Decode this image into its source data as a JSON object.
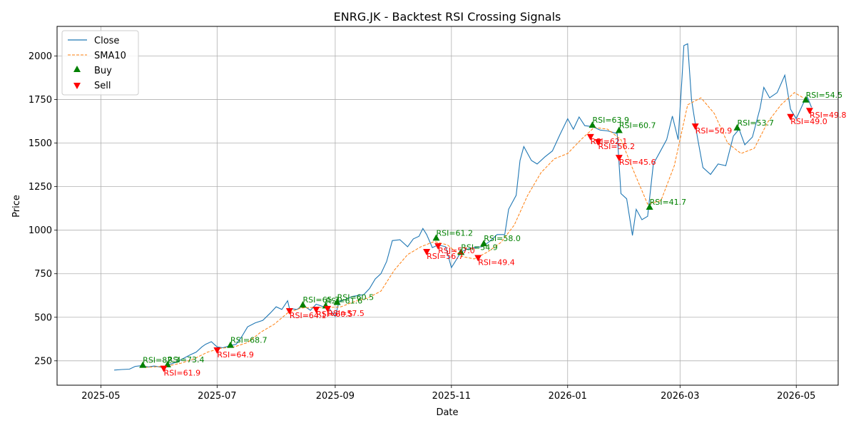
{
  "chart_data": {
    "type": "line",
    "title": "ENRG.JK - Backtest RSI Crossing Signals",
    "xlabel": "Date",
    "ylabel": "Price",
    "xlim": [
      "2025-04-08",
      "2026-05-23"
    ],
    "ylim": [
      110,
      2170
    ],
    "x_ticks": [
      "2025-05-01",
      "2025-07-01",
      "2025-09-01",
      "2025-11-01",
      "2026-01-01",
      "2026-03-01",
      "2026-05-01"
    ],
    "x_tick_labels": [
      "2025-05",
      "2025-07",
      "2025-09",
      "2025-11",
      "2026-01",
      "2026-03",
      "2026-05"
    ],
    "y_ticks": [
      250,
      500,
      750,
      1000,
      1250,
      1500,
      1750,
      2000
    ],
    "grid": true,
    "legend_position": "top-left",
    "colors": {
      "close": "#1f77b4",
      "sma": "#ff7f0e",
      "buy": "#008000",
      "sell": "#ff0000",
      "grid": "#b0b0b0"
    },
    "series": [
      {
        "name": "Close",
        "style": "solid",
        "points": [
          [
            "2025-05-08",
            197
          ],
          [
            "2025-05-12",
            200
          ],
          [
            "2025-05-16",
            202
          ],
          [
            "2025-05-19",
            218
          ],
          [
            "2025-05-22",
            222
          ],
          [
            "2025-05-26",
            215
          ],
          [
            "2025-05-29",
            220
          ],
          [
            "2025-06-02",
            212
          ],
          [
            "2025-06-05",
            225
          ],
          [
            "2025-06-09",
            240
          ],
          [
            "2025-06-13",
            262
          ],
          [
            "2025-06-17",
            285
          ],
          [
            "2025-06-20",
            300
          ],
          [
            "2025-06-23",
            330
          ],
          [
            "2025-06-25",
            345
          ],
          [
            "2025-06-28",
            360
          ],
          [
            "2025-07-01",
            330
          ],
          [
            "2025-07-04",
            325
          ],
          [
            "2025-07-07",
            335
          ],
          [
            "2025-07-11",
            345
          ],
          [
            "2025-07-14",
            390
          ],
          [
            "2025-07-17",
            445
          ],
          [
            "2025-07-21",
            468
          ],
          [
            "2025-07-25",
            482
          ],
          [
            "2025-07-29",
            525
          ],
          [
            "2025-08-01",
            560
          ],
          [
            "2025-08-04",
            545
          ],
          [
            "2025-08-07",
            595
          ],
          [
            "2025-08-08",
            550
          ],
          [
            "2025-08-12",
            545
          ],
          [
            "2025-08-15",
            570
          ],
          [
            "2025-08-19",
            540
          ],
          [
            "2025-08-22",
            575
          ],
          [
            "2025-08-26",
            560
          ],
          [
            "2025-08-29",
            548
          ],
          [
            "2025-09-01",
            505
          ],
          [
            "2025-09-03",
            590
          ],
          [
            "2025-09-06",
            600
          ],
          [
            "2025-09-10",
            620
          ],
          [
            "2025-09-16",
            630
          ],
          [
            "2025-09-19",
            665
          ],
          [
            "2025-09-22",
            720
          ],
          [
            "2025-09-25",
            750
          ],
          [
            "2025-09-28",
            820
          ],
          [
            "2025-10-01",
            940
          ],
          [
            "2025-10-05",
            945
          ],
          [
            "2025-10-09",
            905
          ],
          [
            "2025-10-12",
            950
          ],
          [
            "2025-10-15",
            965
          ],
          [
            "2025-10-17",
            1010
          ],
          [
            "2025-10-19",
            975
          ],
          [
            "2025-10-22",
            900
          ],
          [
            "2025-10-25",
            915
          ],
          [
            "2025-10-29",
            905
          ],
          [
            "2025-11-01",
            785
          ],
          [
            "2025-11-03",
            820
          ],
          [
            "2025-11-06",
            875
          ],
          [
            "2025-11-09",
            890
          ],
          [
            "2025-11-13",
            900
          ],
          [
            "2025-11-17",
            905
          ],
          [
            "2025-11-21",
            935
          ],
          [
            "2025-11-25",
            975
          ],
          [
            "2025-11-29",
            975
          ],
          [
            "2025-12-01",
            1120
          ],
          [
            "2025-12-05",
            1200
          ],
          [
            "2025-12-07",
            1400
          ],
          [
            "2025-12-09",
            1480
          ],
          [
            "2025-12-13",
            1400
          ],
          [
            "2025-12-16",
            1380
          ],
          [
            "2025-12-20",
            1420
          ],
          [
            "2025-12-24",
            1455
          ],
          [
            "2025-12-28",
            1550
          ],
          [
            "2026-01-01",
            1640
          ],
          [
            "2026-01-04",
            1580
          ],
          [
            "2026-01-07",
            1650
          ],
          [
            "2026-01-10",
            1600
          ],
          [
            "2026-01-14",
            1595
          ],
          [
            "2026-01-18",
            1575
          ],
          [
            "2026-01-22",
            1570
          ],
          [
            "2026-01-27",
            1555
          ],
          [
            "2026-01-29",
            1210
          ],
          [
            "2026-02-01",
            1180
          ],
          [
            "2026-02-04",
            970
          ],
          [
            "2026-02-06",
            1120
          ],
          [
            "2026-02-09",
            1060
          ],
          [
            "2026-02-12",
            1080
          ],
          [
            "2026-02-15",
            1380
          ],
          [
            "2026-02-18",
            1440
          ],
          [
            "2026-02-22",
            1520
          ],
          [
            "2026-02-25",
            1655
          ],
          [
            "2026-02-28",
            1520
          ],
          [
            "2026-03-02",
            1870
          ],
          [
            "2026-03-03",
            2060
          ],
          [
            "2026-03-05",
            2070
          ],
          [
            "2026-03-07",
            1750
          ],
          [
            "2026-03-10",
            1540
          ],
          [
            "2026-03-13",
            1360
          ],
          [
            "2026-03-17",
            1320
          ],
          [
            "2026-03-21",
            1380
          ],
          [
            "2026-03-25",
            1370
          ],
          [
            "2026-03-29",
            1540
          ],
          [
            "2026-04-01",
            1580
          ],
          [
            "2026-04-04",
            1490
          ],
          [
            "2026-04-08",
            1535
          ],
          [
            "2026-04-12",
            1700
          ],
          [
            "2026-04-14",
            1820
          ],
          [
            "2026-04-17",
            1760
          ],
          [
            "2026-04-21",
            1790
          ],
          [
            "2026-04-25",
            1890
          ],
          [
            "2026-04-28",
            1695
          ],
          [
            "2026-05-01",
            1640
          ],
          [
            "2026-05-05",
            1735
          ],
          [
            "2026-05-07",
            1760
          ],
          [
            "2026-05-09",
            1705
          ]
        ]
      },
      {
        "name": "SMA10",
        "style": "dashed",
        "points": [
          [
            "2025-05-22",
            212
          ],
          [
            "2025-05-29",
            215
          ],
          [
            "2025-06-05",
            220
          ],
          [
            "2025-06-12",
            236
          ],
          [
            "2025-06-19",
            262
          ],
          [
            "2025-06-26",
            300
          ],
          [
            "2025-07-03",
            322
          ],
          [
            "2025-07-10",
            330
          ],
          [
            "2025-07-17",
            355
          ],
          [
            "2025-07-24",
            415
          ],
          [
            "2025-07-31",
            460
          ],
          [
            "2025-08-07",
            525
          ],
          [
            "2025-08-14",
            553
          ],
          [
            "2025-08-21",
            557
          ],
          [
            "2025-08-28",
            555
          ],
          [
            "2025-09-04",
            560
          ],
          [
            "2025-09-11",
            590
          ],
          [
            "2025-09-18",
            610
          ],
          [
            "2025-09-25",
            650
          ],
          [
            "2025-10-02",
            770
          ],
          [
            "2025-10-09",
            860
          ],
          [
            "2025-10-16",
            905
          ],
          [
            "2025-10-23",
            935
          ],
          [
            "2025-10-30",
            915
          ],
          [
            "2025-11-06",
            850
          ],
          [
            "2025-11-13",
            835
          ],
          [
            "2025-11-20",
            875
          ],
          [
            "2025-11-27",
            930
          ],
          [
            "2025-12-04",
            1030
          ],
          [
            "2025-12-11",
            1200
          ],
          [
            "2025-12-18",
            1330
          ],
          [
            "2025-12-25",
            1410
          ],
          [
            "2026-01-01",
            1440
          ],
          [
            "2026-01-08",
            1520
          ],
          [
            "2026-01-15",
            1590
          ],
          [
            "2026-01-22",
            1580
          ],
          [
            "2026-01-29",
            1520
          ],
          [
            "2026-02-05",
            1330
          ],
          [
            "2026-02-12",
            1150
          ],
          [
            "2026-02-19",
            1170
          ],
          [
            "2026-02-26",
            1370
          ],
          [
            "2026-03-05",
            1720
          ],
          [
            "2026-03-12",
            1760
          ],
          [
            "2026-03-19",
            1670
          ],
          [
            "2026-03-26",
            1500
          ],
          [
            "2026-04-02",
            1440
          ],
          [
            "2026-04-09",
            1470
          ],
          [
            "2026-04-16",
            1620
          ],
          [
            "2026-04-23",
            1720
          ],
          [
            "2026-04-30",
            1790
          ],
          [
            "2026-05-07",
            1745
          ]
        ]
      }
    ],
    "buy_signals": [
      {
        "x": "2025-05-23",
        "y": 222,
        "label": "RSI=82.3"
      },
      {
        "x": "2025-06-05",
        "y": 225,
        "label": "RSI=73.4"
      },
      {
        "x": "2025-07-08",
        "y": 337,
        "label": "RSI=68.7"
      },
      {
        "x": "2025-08-15",
        "y": 568,
        "label": "RSI=65.3"
      },
      {
        "x": "2025-08-27",
        "y": 563,
        "label": "RSI=61.6"
      },
      {
        "x": "2025-09-02",
        "y": 583,
        "label": "RSI=60.5"
      },
      {
        "x": "2025-10-24",
        "y": 952,
        "label": "RSI=61.2"
      },
      {
        "x": "2025-11-06",
        "y": 870,
        "label": "RSI=54.9"
      },
      {
        "x": "2025-11-18",
        "y": 920,
        "label": "RSI=58.0"
      },
      {
        "x": "2026-01-14",
        "y": 1600,
        "label": "RSI=63.9"
      },
      {
        "x": "2026-01-28",
        "y": 1570,
        "label": "RSI=60.7"
      },
      {
        "x": "2026-02-13",
        "y": 1130,
        "label": "RSI=41.7"
      },
      {
        "x": "2026-03-31",
        "y": 1585,
        "label": "RSI=53.7"
      },
      {
        "x": "2026-05-06",
        "y": 1745,
        "label": "RSI=54.5"
      }
    ],
    "sell_signals": [
      {
        "x": "2025-06-03",
        "y": 210,
        "label": "RSI=61.9"
      },
      {
        "x": "2025-07-01",
        "y": 315,
        "label": "RSI=64.9"
      },
      {
        "x": "2025-08-08",
        "y": 540,
        "label": "RSI=64.1"
      },
      {
        "x": "2025-08-22",
        "y": 548,
        "label": "RSI=60.5"
      },
      {
        "x": "2025-08-28",
        "y": 553,
        "label": "RSI=57.5"
      },
      {
        "x": "2025-10-19",
        "y": 880,
        "label": "RSI=56.7"
      },
      {
        "x": "2025-10-25",
        "y": 913,
        "label": "RSI=57.0"
      },
      {
        "x": "2025-11-15",
        "y": 845,
        "label": "RSI=49.4"
      },
      {
        "x": "2026-01-13",
        "y": 1540,
        "label": "RSI=62.1"
      },
      {
        "x": "2026-01-17",
        "y": 1510,
        "label": "RSI=56.2"
      },
      {
        "x": "2026-01-28",
        "y": 1420,
        "label": "RSI=45.6"
      },
      {
        "x": "2026-03-09",
        "y": 1600,
        "label": "RSI=50.9"
      },
      {
        "x": "2026-04-28",
        "y": 1655,
        "label": "RSI=49.0"
      },
      {
        "x": "2026-05-08",
        "y": 1690,
        "label": "RSI=49.8"
      }
    ],
    "legend": [
      {
        "label": "Close",
        "kind": "line-solid",
        "color": "#1f77b4"
      },
      {
        "label": "SMA10",
        "kind": "line-dashed",
        "color": "#ff7f0e"
      },
      {
        "label": "Buy",
        "kind": "triangle-up",
        "color": "#008000"
      },
      {
        "label": "Sell",
        "kind": "triangle-down",
        "color": "#ff0000"
      }
    ]
  }
}
